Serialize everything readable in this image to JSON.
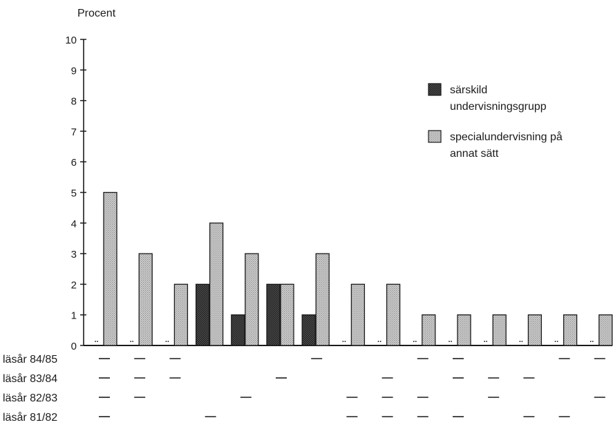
{
  "chart_data": {
    "type": "bar",
    "title": "",
    "ylabel": "Procent",
    "xlabel": "",
    "ylim": [
      0,
      10
    ],
    "yticks": [
      0,
      1,
      2,
      3,
      4,
      5,
      6,
      7,
      8,
      9,
      10
    ],
    "series": [
      {
        "name": "särskild undervisningsgrupp",
        "values": [
          0,
          0,
          0,
          2,
          1,
          2,
          1,
          0,
          0,
          0,
          0,
          0,
          0,
          0,
          0
        ],
        "marks": [
          "..",
          "..",
          "..",
          null,
          null,
          null,
          null,
          "..",
          "..",
          "..",
          "..",
          "..",
          "..",
          "..",
          ".."
        ],
        "color": "#3a3a3a",
        "pattern": "dark-dotted"
      },
      {
        "name": "specialundervisning på annat sätt",
        "values": [
          5,
          3,
          2,
          4,
          3,
          2,
          3,
          2,
          2,
          1,
          1,
          1,
          1,
          1,
          1
        ],
        "color": "#bdbdbd",
        "pattern": "light-dotted"
      }
    ],
    "legend": {
      "placement": "top-right",
      "entries": [
        {
          "line1": "särskild",
          "line2": "undervisningsgrupp"
        },
        {
          "line1": "specialundervisning på",
          "line2": "annat sätt"
        }
      ]
    },
    "rows": [
      {
        "label": "läsår 84/85",
        "dashes": [
          1,
          1,
          1,
          0,
          0,
          0,
          1,
          0,
          0,
          1,
          1,
          0,
          0,
          1,
          1
        ]
      },
      {
        "label": "läsår 83/84",
        "dashes": [
          1,
          1,
          1,
          0,
          0,
          1,
          0,
          0,
          1,
          0,
          1,
          1,
          1,
          0,
          0
        ]
      },
      {
        "label": "läsår 82/83",
        "dashes": [
          1,
          1,
          0,
          0,
          1,
          0,
          0,
          1,
          1,
          1,
          0,
          1,
          0,
          0,
          1
        ]
      },
      {
        "label": "läsår 81/82",
        "dashes": [
          1,
          0,
          0,
          1,
          0,
          0,
          0,
          1,
          1,
          1,
          1,
          0,
          1,
          1,
          0
        ]
      }
    ],
    "grid": false
  }
}
